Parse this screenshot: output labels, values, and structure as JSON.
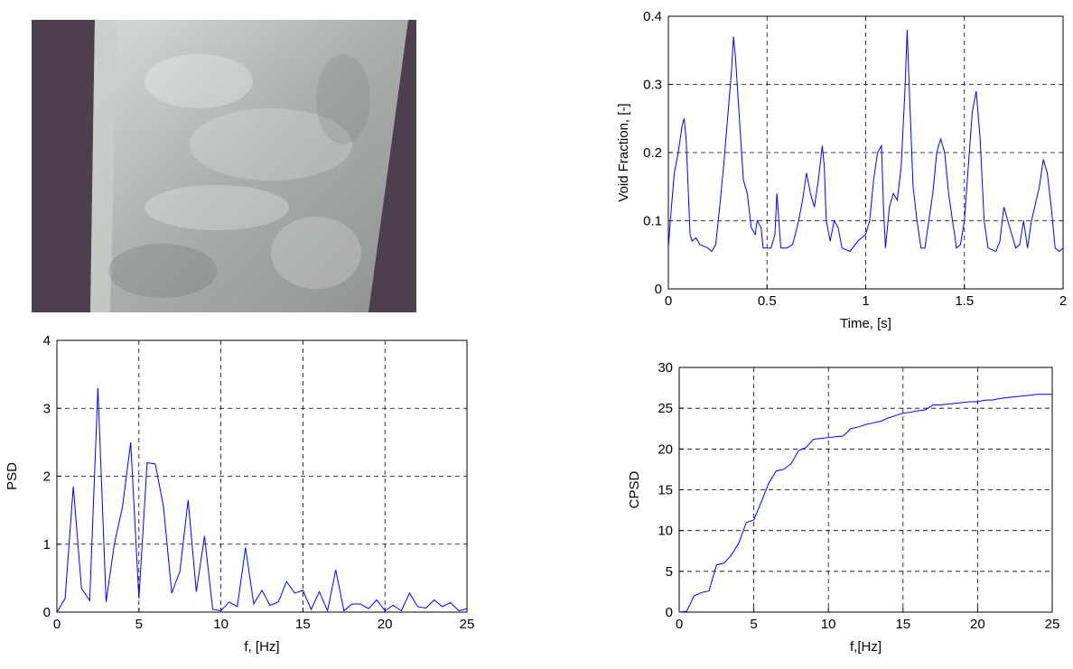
{
  "chart_data": [
    {
      "type": "line",
      "xlabel": "Time, [s]",
      "ylabel": "Void Fraction, [-]",
      "x": [
        0,
        0.01,
        0.03,
        0.05,
        0.07,
        0.08,
        0.09,
        0.1,
        0.11,
        0.12,
        0.14,
        0.16,
        0.2,
        0.22,
        0.24,
        0.26,
        0.28,
        0.3,
        0.32,
        0.33,
        0.34,
        0.36,
        0.38,
        0.4,
        0.42,
        0.44,
        0.45,
        0.47,
        0.48,
        0.5,
        0.52,
        0.54,
        0.55,
        0.56,
        0.57,
        0.6,
        0.63,
        0.66,
        0.68,
        0.7,
        0.72,
        0.74,
        0.76,
        0.78,
        0.79,
        0.8,
        0.82,
        0.84,
        0.86,
        0.88,
        0.92,
        0.96,
        1.0,
        1.02,
        1.04,
        1.06,
        1.08,
        1.09,
        1.1,
        1.12,
        1.14,
        1.16,
        1.18,
        1.2,
        1.21,
        1.22,
        1.24,
        1.26,
        1.28,
        1.3,
        1.32,
        1.34,
        1.36,
        1.38,
        1.4,
        1.42,
        1.44,
        1.46,
        1.48,
        1.5,
        1.52,
        1.54,
        1.56,
        1.58,
        1.6,
        1.62,
        1.66,
        1.68,
        1.7,
        1.72,
        1.74,
        1.76,
        1.78,
        1.8,
        1.82,
        1.84,
        1.88,
        1.9,
        1.92,
        1.94,
        1.96,
        1.98,
        2.0
      ],
      "series": [
        {
          "color": "#0000ff",
          "values": [
            0.06,
            0.1,
            0.17,
            0.2,
            0.24,
            0.25,
            0.22,
            0.15,
            0.08,
            0.07,
            0.075,
            0.065,
            0.06,
            0.055,
            0.065,
            0.12,
            0.18,
            0.25,
            0.32,
            0.37,
            0.34,
            0.25,
            0.16,
            0.14,
            0.09,
            0.08,
            0.1,
            0.09,
            0.06,
            0.06,
            0.06,
            0.08,
            0.14,
            0.1,
            0.06,
            0.06,
            0.065,
            0.1,
            0.13,
            0.17,
            0.14,
            0.12,
            0.16,
            0.21,
            0.18,
            0.1,
            0.07,
            0.1,
            0.09,
            0.06,
            0.055,
            0.07,
            0.08,
            0.1,
            0.16,
            0.2,
            0.21,
            0.12,
            0.06,
            0.12,
            0.14,
            0.13,
            0.18,
            0.3,
            0.38,
            0.3,
            0.15,
            0.1,
            0.06,
            0.06,
            0.1,
            0.14,
            0.2,
            0.22,
            0.2,
            0.14,
            0.1,
            0.06,
            0.065,
            0.1,
            0.18,
            0.26,
            0.29,
            0.22,
            0.1,
            0.06,
            0.055,
            0.07,
            0.12,
            0.1,
            0.08,
            0.06,
            0.065,
            0.1,
            0.06,
            0.1,
            0.15,
            0.19,
            0.17,
            0.12,
            0.06,
            0.055,
            0.06
          ]
        }
      ],
      "xlim": [
        0,
        2
      ],
      "ylim": [
        0,
        0.4
      ],
      "xticks": [
        0,
        0.5,
        1,
        1.5,
        2
      ],
      "yticks": [
        0,
        0.1,
        0.2,
        0.3,
        0.4
      ],
      "grid": true
    },
    {
      "type": "line",
      "xlabel": "f, [Hz]",
      "ylabel": "PSD",
      "x": [
        0,
        0.5,
        1,
        1.5,
        2,
        2.5,
        3,
        3.5,
        4,
        4.5,
        5,
        5.5,
        6,
        6.5,
        7,
        7.5,
        8,
        8.5,
        9,
        9.5,
        10,
        10.5,
        11,
        11.5,
        12,
        12.5,
        13,
        13.5,
        14,
        14.5,
        15,
        15.5,
        16,
        16.5,
        17,
        17.5,
        18,
        18.5,
        19,
        19.5,
        20,
        20.5,
        21,
        21.5,
        22,
        22.5,
        23,
        23.5,
        24,
        24.5,
        25
      ],
      "series": [
        {
          "color": "#0000ff",
          "values": [
            0,
            0.2,
            1.85,
            0.35,
            0.17,
            3.3,
            0.15,
            1.0,
            1.55,
            2.5,
            0.2,
            2.2,
            2.18,
            1.55,
            0.28,
            0.6,
            1.65,
            0.3,
            1.12,
            0.04,
            0.02,
            0.15,
            0.08,
            0.95,
            0.12,
            0.32,
            0.1,
            0.15,
            0.45,
            0.28,
            0.32,
            0.04,
            0.3,
            0.02,
            0.62,
            0.02,
            0.12,
            0.12,
            0.05,
            0.18,
            0.02,
            0.1,
            0.02,
            0.28,
            0.08,
            0.06,
            0.18,
            0.08,
            0.14,
            0.02,
            0.05
          ]
        }
      ],
      "xlim": [
        0,
        25
      ],
      "ylim": [
        0,
        4
      ],
      "xticks": [
        0,
        5,
        10,
        15,
        20,
        25
      ],
      "yticks": [
        0,
        1,
        2,
        3,
        4
      ],
      "grid": true
    },
    {
      "type": "line",
      "xlabel": "f,[Hz]",
      "ylabel": "CPSD",
      "x": [
        0,
        0.5,
        1,
        1.5,
        2,
        2.5,
        3,
        3.5,
        4,
        4.5,
        5,
        5.5,
        6,
        6.5,
        7,
        7.5,
        8,
        8.5,
        9,
        9.5,
        10,
        10.5,
        11,
        11.5,
        12,
        12.5,
        13,
        13.5,
        14,
        14.5,
        15,
        15.5,
        16,
        16.5,
        17,
        17.5,
        18,
        18.5,
        19,
        19.5,
        20,
        20.5,
        21,
        21.5,
        22,
        22.5,
        23,
        23.5,
        24,
        24.5,
        25
      ],
      "series": [
        {
          "color": "#0000ff",
          "values": [
            0,
            0.1,
            2,
            2.4,
            2.6,
            5.8,
            6,
            7,
            8.5,
            11,
            11.3,
            13.5,
            15.8,
            17.3,
            17.5,
            18.2,
            19.8,
            20.2,
            21.2,
            21.3,
            21.4,
            21.5,
            21.6,
            22.5,
            22.7,
            23,
            23.2,
            23.4,
            23.8,
            24.1,
            24.4,
            24.5,
            24.7,
            24.8,
            25.4,
            25.4,
            25.5,
            25.6,
            25.7,
            25.8,
            25.8,
            26,
            26,
            26.2,
            26.3,
            26.4,
            26.5,
            26.6,
            26.7,
            26.7,
            26.7
          ]
        }
      ],
      "xlim": [
        0,
        25
      ],
      "ylim": [
        0,
        30
      ],
      "xticks": [
        0,
        5,
        10,
        15,
        20,
        25
      ],
      "yticks": [
        0,
        5,
        10,
        15,
        20,
        25,
        30
      ],
      "grid": true
    }
  ]
}
